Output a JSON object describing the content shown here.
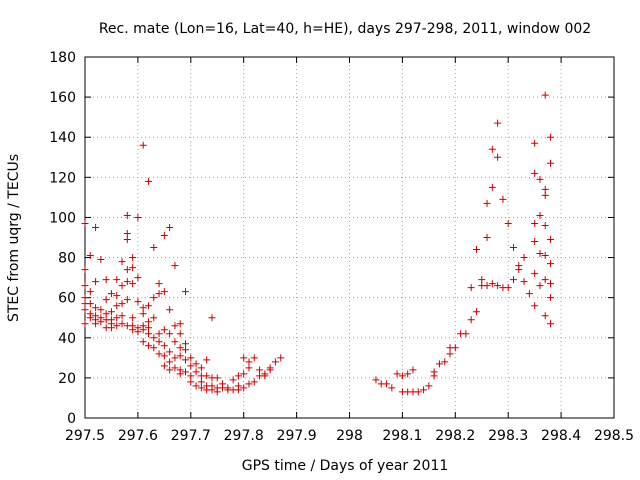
{
  "chart_data": {
    "type": "scatter",
    "title": "Rec. mate (Lon=16, Lat=40, h=HE), days 297-298, 2011, window 002",
    "xlabel": "GPS time / Days of year 2011",
    "ylabel": "STEC from uqrg / TECUs",
    "xlim": [
      297.5,
      298.5
    ],
    "ylim": [
      0,
      180
    ],
    "xticks": [
      297.5,
      297.6,
      297.7,
      297.8,
      297.9,
      298,
      298.1,
      298.2,
      298.3,
      298.4,
      298.5
    ],
    "xtick_labels": [
      "297.5",
      "297.6",
      "297.7",
      "297.8",
      "297.9",
      "298",
      "298.1",
      "298.2",
      "298.3",
      "298.4",
      "298.5"
    ],
    "yticks": [
      0,
      20,
      40,
      60,
      80,
      100,
      120,
      140,
      160,
      180
    ],
    "ytick_labels": [
      "0",
      "20",
      "40",
      "60",
      "80",
      "100",
      "120",
      "140",
      "160",
      "180"
    ],
    "grid": true,
    "marker": "+",
    "color": "#cc0000",
    "series": [
      {
        "points": [
          [
            297.5,
            97
          ],
          [
            297.5,
            74
          ],
          [
            297.5,
            66
          ],
          [
            297.5,
            60
          ],
          [
            297.5,
            57
          ],
          [
            297.5,
            54
          ],
          [
            297.5,
            47
          ],
          [
            297.51,
            81
          ],
          [
            297.51,
            63
          ],
          [
            297.51,
            57
          ],
          [
            297.51,
            52
          ],
          [
            297.51,
            50
          ],
          [
            297.52,
            95
          ],
          [
            297.52,
            68
          ],
          [
            297.52,
            55
          ],
          [
            297.52,
            51
          ],
          [
            297.52,
            49
          ],
          [
            297.52,
            47
          ],
          [
            297.53,
            79
          ],
          [
            297.53,
            54
          ],
          [
            297.53,
            50
          ],
          [
            297.53,
            48
          ],
          [
            297.54,
            69
          ],
          [
            297.54,
            59
          ],
          [
            297.54,
            52
          ],
          [
            297.54,
            49
          ],
          [
            297.54,
            45
          ],
          [
            297.55,
            62
          ],
          [
            297.55,
            53
          ],
          [
            297.55,
            49
          ],
          [
            297.55,
            47
          ],
          [
            297.55,
            45
          ],
          [
            297.56,
            69
          ],
          [
            297.56,
            61
          ],
          [
            297.56,
            56
          ],
          [
            297.56,
            50
          ],
          [
            297.56,
            46
          ],
          [
            297.57,
            78
          ],
          [
            297.57,
            66
          ],
          [
            297.57,
            57
          ],
          [
            297.57,
            51
          ],
          [
            297.57,
            47
          ],
          [
            297.58,
            101
          ],
          [
            297.58,
            92
          ],
          [
            297.58,
            89
          ],
          [
            297.58,
            74
          ],
          [
            297.58,
            68
          ],
          [
            297.58,
            59
          ],
          [
            297.58,
            46
          ],
          [
            297.59,
            80
          ],
          [
            297.59,
            75
          ],
          [
            297.59,
            67
          ],
          [
            297.59,
            50
          ],
          [
            297.59,
            46
          ],
          [
            297.59,
            44
          ],
          [
            297.6,
            100
          ],
          [
            297.6,
            70
          ],
          [
            297.6,
            58
          ],
          [
            297.6,
            45
          ],
          [
            297.6,
            43
          ],
          [
            297.61,
            136
          ],
          [
            297.61,
            55
          ],
          [
            297.61,
            52
          ],
          [
            297.61,
            46
          ],
          [
            297.61,
            44
          ],
          [
            297.61,
            38
          ],
          [
            297.62,
            118
          ],
          [
            297.62,
            56
          ],
          [
            297.62,
            48
          ],
          [
            297.62,
            45
          ],
          [
            297.62,
            42
          ],
          [
            297.62,
            36
          ],
          [
            297.63,
            85
          ],
          [
            297.63,
            60
          ],
          [
            297.63,
            50
          ],
          [
            297.63,
            40
          ],
          [
            297.63,
            35
          ],
          [
            297.64,
            67
          ],
          [
            297.64,
            62
          ],
          [
            297.64,
            42
          ],
          [
            297.64,
            38
          ],
          [
            297.64,
            32
          ],
          [
            297.65,
            91
          ],
          [
            297.65,
            63
          ],
          [
            297.65,
            44
          ],
          [
            297.65,
            36
          ],
          [
            297.65,
            31
          ],
          [
            297.65,
            26
          ],
          [
            297.66,
            95
          ],
          [
            297.66,
            54
          ],
          [
            297.66,
            42
          ],
          [
            297.66,
            33
          ],
          [
            297.66,
            28
          ],
          [
            297.66,
            24
          ],
          [
            297.67,
            76
          ],
          [
            297.67,
            46
          ],
          [
            297.67,
            38
          ],
          [
            297.67,
            30
          ],
          [
            297.67,
            25
          ],
          [
            297.68,
            47
          ],
          [
            297.68,
            42
          ],
          [
            297.68,
            35
          ],
          [
            297.68,
            31
          ],
          [
            297.68,
            24
          ],
          [
            297.68,
            22
          ],
          [
            297.69,
            63
          ],
          [
            297.69,
            37
          ],
          [
            297.69,
            34
          ],
          [
            297.69,
            29
          ],
          [
            297.69,
            23
          ],
          [
            297.7,
            30
          ],
          [
            297.7,
            26
          ],
          [
            297.7,
            21
          ],
          [
            297.7,
            18
          ],
          [
            297.71,
            27
          ],
          [
            297.71,
            23
          ],
          [
            297.71,
            16
          ],
          [
            297.72,
            25
          ],
          [
            297.72,
            21
          ],
          [
            297.72,
            18
          ],
          [
            297.72,
            15
          ],
          [
            297.73,
            29
          ],
          [
            297.73,
            21
          ],
          [
            297.73,
            16
          ],
          [
            297.73,
            14
          ],
          [
            297.74,
            50
          ],
          [
            297.74,
            20
          ],
          [
            297.74,
            16
          ],
          [
            297.74,
            14
          ],
          [
            297.75,
            20
          ],
          [
            297.75,
            15
          ],
          [
            297.75,
            13
          ],
          [
            297.76,
            17
          ],
          [
            297.76,
            15
          ],
          [
            297.77,
            15
          ],
          [
            297.77,
            14
          ],
          [
            297.78,
            19
          ],
          [
            297.78,
            14
          ],
          [
            297.79,
            21
          ],
          [
            297.79,
            16
          ],
          [
            297.79,
            14
          ],
          [
            297.8,
            30
          ],
          [
            297.8,
            22
          ],
          [
            297.8,
            15
          ],
          [
            297.81,
            28
          ],
          [
            297.81,
            25
          ],
          [
            297.81,
            17
          ],
          [
            297.82,
            30
          ],
          [
            297.82,
            18
          ],
          [
            297.83,
            24
          ],
          [
            297.83,
            21
          ],
          [
            297.84,
            22
          ],
          [
            297.84,
            21
          ],
          [
            297.85,
            24
          ],
          [
            297.85,
            25
          ],
          [
            297.86,
            28
          ],
          [
            297.87,
            30
          ],
          [
            298.05,
            19
          ],
          [
            298.06,
            17
          ],
          [
            298.07,
            17
          ],
          [
            298.08,
            15
          ],
          [
            298.09,
            22
          ],
          [
            298.1,
            21
          ],
          [
            298.1,
            13
          ],
          [
            298.11,
            22
          ],
          [
            298.11,
            13
          ],
          [
            298.12,
            24
          ],
          [
            298.12,
            13
          ],
          [
            298.13,
            13
          ],
          [
            298.14,
            14
          ],
          [
            298.15,
            16
          ],
          [
            298.16,
            21
          ],
          [
            298.16,
            23
          ],
          [
            298.17,
            27
          ],
          [
            298.18,
            28
          ],
          [
            298.19,
            32
          ],
          [
            298.19,
            35
          ],
          [
            298.2,
            35
          ],
          [
            298.21,
            42
          ],
          [
            298.22,
            42
          ],
          [
            298.23,
            49
          ],
          [
            298.23,
            65
          ],
          [
            298.24,
            53
          ],
          [
            298.24,
            84
          ],
          [
            298.25,
            66
          ],
          [
            298.25,
            69
          ],
          [
            298.26,
            107
          ],
          [
            298.26,
            90
          ],
          [
            298.26,
            66
          ],
          [
            298.27,
            134
          ],
          [
            298.27,
            115
          ],
          [
            298.27,
            67
          ],
          [
            298.28,
            147
          ],
          [
            298.28,
            130
          ],
          [
            298.28,
            66
          ],
          [
            298.29,
            109
          ],
          [
            298.29,
            65
          ],
          [
            298.3,
            97
          ],
          [
            298.3,
            65
          ],
          [
            298.31,
            85
          ],
          [
            298.31,
            69
          ],
          [
            298.32,
            76
          ],
          [
            298.32,
            74
          ],
          [
            298.33,
            80
          ],
          [
            298.33,
            68
          ],
          [
            298.34,
            62
          ],
          [
            298.35,
            137
          ],
          [
            298.35,
            122
          ],
          [
            298.35,
            97
          ],
          [
            298.35,
            88
          ],
          [
            298.35,
            72
          ],
          [
            298.35,
            56
          ],
          [
            298.36,
            119
          ],
          [
            298.36,
            101
          ],
          [
            298.36,
            82
          ],
          [
            298.36,
            66
          ],
          [
            298.37,
            161
          ],
          [
            298.37,
            114
          ],
          [
            298.37,
            111
          ],
          [
            298.37,
            96
          ],
          [
            298.37,
            81
          ],
          [
            298.37,
            69
          ],
          [
            298.37,
            51
          ],
          [
            298.38,
            140
          ],
          [
            298.38,
            127
          ],
          [
            298.38,
            89
          ],
          [
            298.38,
            77
          ],
          [
            298.38,
            67
          ],
          [
            298.38,
            60
          ],
          [
            298.38,
            47
          ]
        ]
      }
    ]
  }
}
